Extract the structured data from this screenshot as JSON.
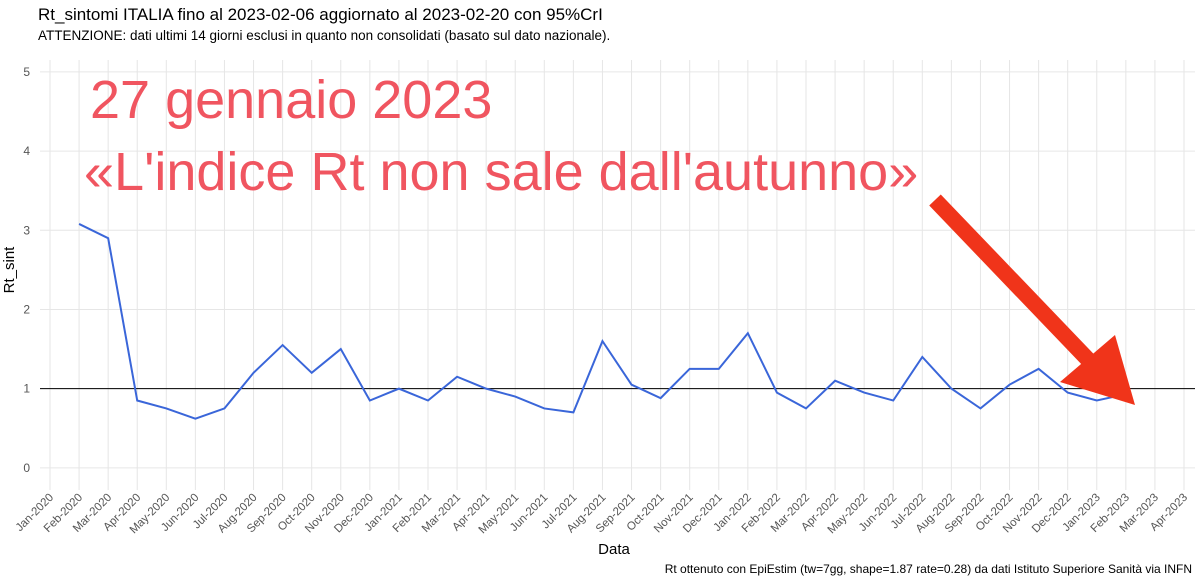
{
  "chart_data": {
    "type": "line",
    "title": "Rt_sintomi ITALIA fino al 2023-02-06 aggiornato al 2023-02-20 con 95%CrI",
    "subtitle": "ATTENZIONE: dati ultimi 14 giorni esclusi in quanto non consolidati (basato sul dato nazionale).",
    "annotation": [
      "27 gennaio 2023",
      "«L'indice Rt non sale dall'autunno»"
    ],
    "caption": "Rt ottenuto con EpiEstim (tw=7gg, shape=1.87 rate=0.28) da dati Istituto Superiore Sanità via INFN",
    "x_label": "Data",
    "y_label": "Rt_sint",
    "x": [
      "2020-02",
      "2020-03",
      "2020-04",
      "2020-05",
      "2020-06",
      "2020-07",
      "2020-08",
      "2020-09",
      "2020-10",
      "2020-11",
      "2020-12",
      "2021-01",
      "2021-02",
      "2021-03",
      "2021-04",
      "2021-05",
      "2021-06",
      "2021-07",
      "2021-08",
      "2021-09",
      "2021-10",
      "2021-11",
      "2021-12",
      "2022-01",
      "2022-02",
      "2022-03",
      "2022-04",
      "2022-05",
      "2022-06",
      "2022-07",
      "2022-08",
      "2022-09",
      "2022-10",
      "2022-11",
      "2022-12",
      "2023-01",
      "2023-02"
    ],
    "series": [
      {
        "color": "#3a66d9",
        "values": [
          3.08,
          2.9,
          0.85,
          0.75,
          0.62,
          0.75,
          1.2,
          1.55,
          1.2,
          1.5,
          0.85,
          1.0,
          0.85,
          1.15,
          1.0,
          0.9,
          0.75,
          0.7,
          1.6,
          1.05,
          0.88,
          1.25,
          1.25,
          1.7,
          0.95,
          0.75,
          1.1,
          0.95,
          0.85,
          1.4,
          1.0,
          0.75,
          1.05,
          1.25,
          0.95,
          0.85,
          0.93
        ]
      }
    ],
    "hline": 1,
    "xlim": [
      "2020-01",
      "2023-04"
    ],
    "xticks": [
      {
        "value": "2020-01",
        "label": "Jan-2020"
      },
      {
        "value": "2020-02",
        "label": "Feb-2020"
      },
      {
        "value": "2020-03",
        "label": "Mar-2020"
      },
      {
        "value": "2020-04",
        "label": "Apr-2020"
      },
      {
        "value": "2020-05",
        "label": "May-2020"
      },
      {
        "value": "2020-06",
        "label": "Jun-2020"
      },
      {
        "value": "2020-07",
        "label": "Jul-2020"
      },
      {
        "value": "2020-08",
        "label": "Aug-2020"
      },
      {
        "value": "2020-09",
        "label": "Sep-2020"
      },
      {
        "value": "2020-10",
        "label": "Oct-2020"
      },
      {
        "value": "2020-11",
        "label": "Nov-2020"
      },
      {
        "value": "2020-12",
        "label": "Dec-2020"
      },
      {
        "value": "2021-01",
        "label": "Jan-2021"
      },
      {
        "value": "2021-02",
        "label": "Feb-2021"
      },
      {
        "value": "2021-03",
        "label": "Mar-2021"
      },
      {
        "value": "2021-04",
        "label": "Apr-2021"
      },
      {
        "value": "2021-05",
        "label": "May-2021"
      },
      {
        "value": "2021-06",
        "label": "Jun-2021"
      },
      {
        "value": "2021-07",
        "label": "Jul-2021"
      },
      {
        "value": "2021-08",
        "label": "Aug-2021"
      },
      {
        "value": "2021-09",
        "label": "Sep-2021"
      },
      {
        "value": "2021-10",
        "label": "Oct-2021"
      },
      {
        "value": "2021-11",
        "label": "Nov-2021"
      },
      {
        "value": "2021-12",
        "label": "Dec-2021"
      },
      {
        "value": "2022-01",
        "label": "Jan-2022"
      },
      {
        "value": "2022-02",
        "label": "Feb-2022"
      },
      {
        "value": "2022-03",
        "label": "Mar-2022"
      },
      {
        "value": "2022-04",
        "label": "Apr-2022"
      },
      {
        "value": "2022-05",
        "label": "May-2022"
      },
      {
        "value": "2022-06",
        "label": "Jun-2022"
      },
      {
        "value": "2022-07",
        "label": "Jul-2022"
      },
      {
        "value": "2022-08",
        "label": "Aug-2022"
      },
      {
        "value": "2022-09",
        "label": "Sep-2022"
      },
      {
        "value": "2022-10",
        "label": "Oct-2022"
      },
      {
        "value": "2022-11",
        "label": "Nov-2022"
      },
      {
        "value": "2022-12",
        "label": "Dec-2022"
      },
      {
        "value": "2023-01",
        "label": "Jan-2023"
      },
      {
        "value": "2023-02",
        "label": "Feb-2023"
      },
      {
        "value": "2023-03",
        "label": "Mar-2023"
      },
      {
        "value": "2023-04",
        "label": "Apr-2023"
      }
    ],
    "ylim": [
      -0.28,
      5.15
    ],
    "yticks": [
      0,
      1,
      2,
      3,
      4,
      5
    ],
    "grid": true
  }
}
